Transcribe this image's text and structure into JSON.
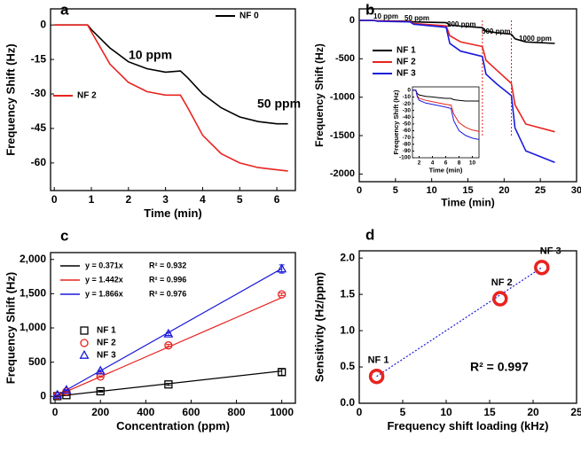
{
  "chart_data": [
    {
      "type": "line",
      "letter": "a",
      "xlabel": "Time (min)",
      "ylabel": "Frequency Shift (Hz)",
      "xlim": [
        -0.1,
        6.5
      ],
      "ylim": [
        -72,
        7
      ],
      "xticks": [
        0,
        1,
        2,
        3,
        4,
        5,
        6
      ],
      "yticks": [
        0,
        -15,
        -30,
        -45,
        -60
      ],
      "x": [
        0,
        0.9,
        1.0,
        1.5,
        2,
        2.5,
        3,
        3.4,
        3.6,
        4,
        4.5,
        5,
        5.5,
        6,
        6.3
      ],
      "series": [
        {
          "name": "NF 0",
          "color": "#000000",
          "values": [
            0,
            0,
            -2,
            -10,
            -16,
            -19,
            -20.5,
            -20,
            -23,
            -30,
            -36,
            -40,
            -42,
            -43,
            -43
          ]
        },
        {
          "name": "NF 2",
          "color": "#e8231f",
          "values": [
            0,
            0,
            -3,
            -17,
            -25,
            -29,
            -30.5,
            -30.5,
            -36,
            -48,
            -56,
            -60,
            -62,
            -63,
            -63.5
          ]
        }
      ],
      "annotations": [
        "10 ppm",
        "50 ppm"
      ]
    },
    {
      "type": "line",
      "letter": "b",
      "xlabel": "Time (min)",
      "ylabel": "Frequency Shift (Hz)",
      "xlim": [
        0,
        30
      ],
      "ylim": [
        -2100,
        150
      ],
      "xticks": [
        0,
        5,
        10,
        15,
        20,
        25,
        30
      ],
      "yticks": [
        0,
        -500,
        -1000,
        -1500,
        -2000
      ],
      "x": [
        0,
        2,
        2.5,
        7,
        7.5,
        12,
        12.5,
        14,
        17,
        17.5,
        19,
        21,
        21.5,
        23,
        27
      ],
      "series": [
        {
          "name": "NF 1",
          "color": "#000000",
          "values": [
            0,
            0,
            -5,
            -10,
            -20,
            -30,
            -60,
            -75,
            -95,
            -140,
            -160,
            -180,
            -240,
            -280,
            -300
          ]
        },
        {
          "name": "NF 2",
          "color": "#e8231f",
          "values": [
            0,
            0,
            -5,
            -15,
            -40,
            -70,
            -200,
            -280,
            -340,
            -520,
            -650,
            -820,
            -1100,
            -1350,
            -1450
          ]
        },
        {
          "name": "NF 3",
          "color": "#1a1adb",
          "values": [
            0,
            0,
            -10,
            -20,
            -50,
            -90,
            -300,
            -400,
            -470,
            -700,
            -830,
            -980,
            -1400,
            -1700,
            -1850
          ]
        }
      ],
      "annotations": [
        "10 ppm",
        "50 ppm",
        "200 ppm",
        "500 ppm",
        "1000 ppm"
      ]
    },
    {
      "type": "line",
      "xlabel": "Time (min)",
      "ylabel": "Frequency Shift (Hz)",
      "xlim": [
        1,
        11
      ],
      "ylim": [
        -100,
        5
      ],
      "xticks": [
        2,
        4,
        6,
        8,
        10
      ],
      "yticks": [
        0,
        -10,
        -20,
        -30,
        -40,
        -50,
        -60,
        -70,
        -80,
        -90,
        -100
      ],
      "x": [
        1,
        1.5,
        1.7,
        2,
        3,
        4,
        5,
        6,
        6.8,
        7.2,
        8,
        9,
        10,
        11
      ],
      "series": [
        {
          "color": "#000000",
          "values": [
            0,
            0,
            -5,
            -7,
            -9,
            -10,
            -11,
            -12,
            -12,
            -14,
            -15,
            -16,
            -16,
            -16
          ]
        },
        {
          "color": "#e8231f",
          "values": [
            0,
            0,
            -8,
            -12,
            -15,
            -17,
            -19,
            -21,
            -22,
            -35,
            -48,
            -55,
            -59,
            -61
          ]
        },
        {
          "color": "#1a1adb",
          "values": [
            0,
            0,
            -9,
            -15,
            -19,
            -21,
            -23,
            -25,
            -27,
            -45,
            -60,
            -67,
            -71,
            -73
          ]
        }
      ]
    },
    {
      "type": "scatter",
      "letter": "c",
      "xlabel": "Concentration (ppm)",
      "ylabel": "Frequency Shift (Hz)",
      "xlim": [
        -20,
        1060
      ],
      "ylim": [
        -100,
        2100
      ],
      "xticks": [
        0,
        200,
        400,
        600,
        800,
        1000
      ],
      "yticks": [
        0,
        500,
        {
          "value": 1000,
          "label": "1,000"
        },
        {
          "value": 1500,
          "label": "1,500"
        },
        {
          "value": 2000,
          "label": "2,000"
        }
      ],
      "x": [
        10,
        50,
        200,
        500,
        1000
      ],
      "legend": "upper left",
      "series": [
        {
          "name": "NF 1",
          "color": "#000000",
          "marker": "square",
          "values": [
            4,
            19,
            75,
            175,
            355
          ],
          "errors": [
            5,
            8,
            12,
            15,
            45
          ]
        },
        {
          "name": "NF 2",
          "color": "#e8231f",
          "marker": "circle",
          "values": [
            15,
            72,
            290,
            745,
            1490
          ],
          "errors": [
            5,
            8,
            10,
            15,
            20
          ]
        },
        {
          "name": "NF 3",
          "color": "#1a1adb",
          "marker": "triangle",
          "values": [
            20,
            90,
            370,
            910,
            1860
          ],
          "errors": [
            5,
            8,
            12,
            20,
            60
          ]
        }
      ],
      "fits": [
        {
          "equation": "y = 0.371x",
          "r2": "R² = 0.932",
          "slope": 0.371,
          "color": "#000000"
        },
        {
          "equation": "y = 1.442x",
          "r2": "R² = 0.996",
          "slope": 1.442,
          "color": "#e8231f"
        },
        {
          "equation": "y = 1.866x",
          "r2": "R² = 0.976",
          "slope": 1.866,
          "color": "#1a1adb"
        }
      ]
    },
    {
      "type": "scatter",
      "letter": "d",
      "xlabel": "Frequency shift loading (kHz)",
      "ylabel": "Sensitivity (Hz/ppm)",
      "xlim": [
        0,
        25
      ],
      "ylim": [
        0,
        2.1
      ],
      "xticks": [
        0,
        5,
        10,
        15,
        20,
        25
      ],
      "yticks": [
        {
          "value": 0,
          "label": "0.0"
        },
        0.5,
        {
          "value": 1,
          "label": "1.0"
        },
        1.5,
        {
          "value": 2,
          "label": "2.0"
        }
      ],
      "x": [
        2,
        16.2,
        21
      ],
      "point_labels": [
        "NF 1",
        "NF 2",
        "NF 3"
      ],
      "series": [
        {
          "color": "#e8231f",
          "marker": "ring",
          "values": [
            0.37,
            1.44,
            1.87
          ]
        }
      ],
      "annotations": [
        "R² = 0.997"
      ]
    }
  ]
}
